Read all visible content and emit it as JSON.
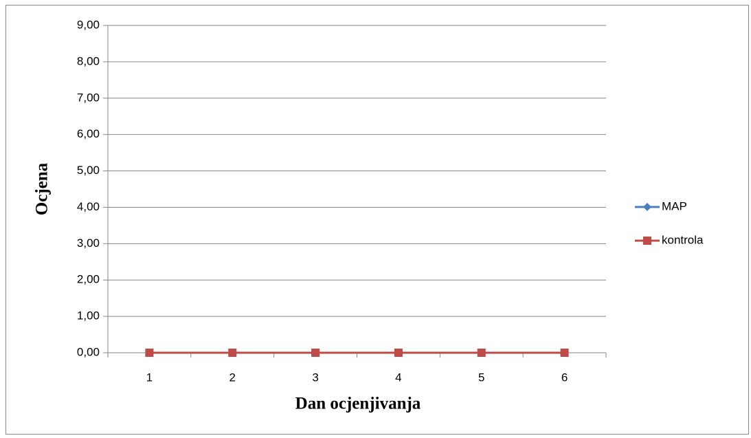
{
  "chart_data": {
    "type": "line",
    "y_label": "Ocjena",
    "x_label": "Dan ocjenjivanja",
    "categories": [
      "1",
      "2",
      "3",
      "4",
      "5",
      "6"
    ],
    "series": [
      {
        "name": "MAP",
        "color": "#4a7ebb",
        "marker": "diamond",
        "values": [
          0,
          0,
          0,
          0,
          0,
          0
        ]
      },
      {
        "name": "kontrola",
        "color": "#be4b48",
        "marker": "square",
        "values": [
          0,
          0,
          0,
          0,
          0,
          0
        ]
      }
    ],
    "ylim": [
      0,
      9
    ],
    "yticks": [
      {
        "value": 0,
        "label": "0,00"
      },
      {
        "value": 1,
        "label": "1,00"
      },
      {
        "value": 2,
        "label": "2,00"
      },
      {
        "value": 3,
        "label": "3,00"
      },
      {
        "value": 4,
        "label": "4,00"
      },
      {
        "value": 5,
        "label": "5,00"
      },
      {
        "value": 6,
        "label": "6,00"
      },
      {
        "value": 7,
        "label": "7,00"
      },
      {
        "value": 8,
        "label": "8,00"
      },
      {
        "value": 9,
        "label": "9,00"
      }
    ],
    "grid": true,
    "legend": "right"
  }
}
